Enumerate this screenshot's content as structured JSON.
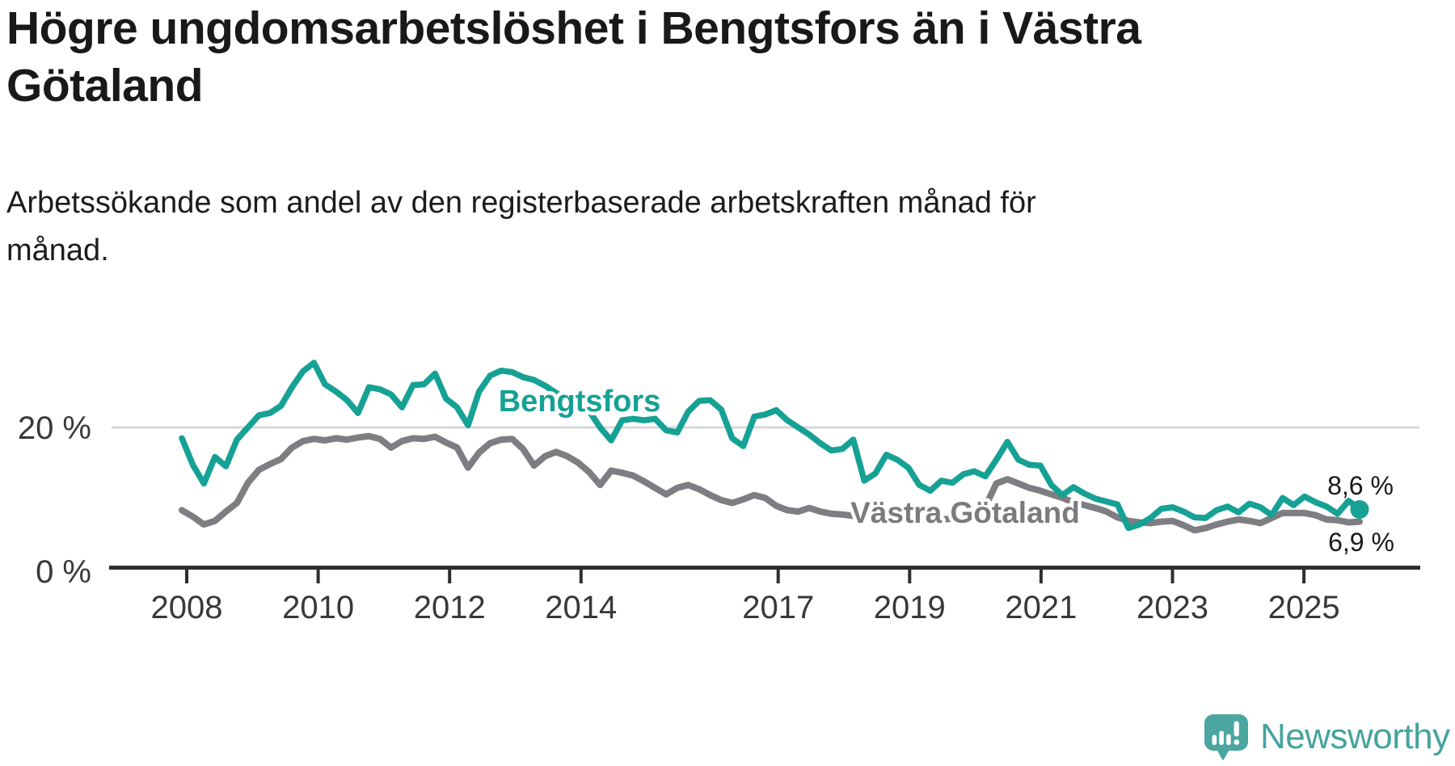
{
  "header": {
    "title_lines": [
      "Högre ungdomsarbetslöshet i Bengtsfors än i Västra",
      "Götaland"
    ],
    "subtitle_lines": [
      "Arbetssökande som andel av den registerbaserade arbetskraften månad för",
      "månad."
    ]
  },
  "branding": {
    "name": "Newsworthy",
    "icon": "newsworthy-speech-bubble-bar-chart-icon",
    "icon_color": "#4ba6a0",
    "text_color": "#45a39d"
  },
  "colors": {
    "accent_teal": "#16a195",
    "series_gray": "#7d7d82",
    "axis_dark": "#2e2e2e",
    "tick_label": "#383838",
    "gridline": "#d8d8d8",
    "value_label": "#191919"
  },
  "chart_data": {
    "type": "line",
    "title": "Högre ungdomsarbetslöshet i Bengtsfors än i Västra Götaland",
    "subtitle": "Arbetssökande som andel av den registerbaserade arbetskraften månad för månad.",
    "unit": "%",
    "x_start_year": 2008.0,
    "x_end_year": 2025.83,
    "x_step_years": 0.1667,
    "frequency_note": "values estimated every 2 months from monthly chart",
    "x_ticks": [
      2008,
      2010,
      2012,
      2014,
      2017,
      2019,
      2021,
      2023,
      2025
    ],
    "y_ticks": [
      {
        "value": 0,
        "label": "0 %"
      },
      {
        "value": 20,
        "label": "20 %"
      }
    ],
    "ylim": [
      0,
      36
    ],
    "grid": "single horizontal gridline at 20 %",
    "legend_position": "inline labels next to lines",
    "series": [
      {
        "name": "Bengtsfors",
        "color": "#16a195",
        "end_label": "8,6 %",
        "last_value": 8.6,
        "values": [
          18.5,
          14.8,
          12.2,
          15.9,
          14.6,
          18.3,
          20.0,
          21.7,
          22.0,
          23.0,
          25.6,
          27.8,
          29.0,
          26.0,
          25.0,
          23.8,
          22.0,
          25.6,
          25.3,
          24.6,
          22.8,
          25.9,
          26.0,
          27.5,
          24.0,
          22.8,
          20.3,
          25.0,
          27.2,
          27.9,
          27.7,
          27.0,
          26.6,
          25.8,
          24.8,
          23.8,
          23.0,
          22.3,
          20.0,
          18.2,
          21.0,
          21.2,
          21.0,
          21.2,
          19.6,
          19.3,
          22.2,
          23.7,
          23.8,
          22.5,
          18.5,
          17.4,
          21.5,
          21.8,
          22.4,
          21.0,
          20.0,
          19.0,
          17.8,
          16.8,
          17.0,
          18.3,
          12.6,
          13.6,
          16.2,
          15.5,
          14.4,
          12.0,
          11.2,
          12.6,
          12.3,
          13.5,
          13.9,
          13.2,
          15.5,
          18.0,
          15.5,
          14.8,
          14.7,
          12.0,
          10.6,
          11.7,
          10.8,
          10.1,
          9.7,
          9.3,
          6.0,
          6.5,
          7.4,
          8.7,
          8.9,
          8.3,
          7.5,
          7.4,
          8.5,
          9.0,
          8.2,
          9.4,
          8.9,
          7.8,
          10.2,
          9.2,
          10.4,
          9.6,
          9.0,
          8.0,
          9.8,
          8.6
        ]
      },
      {
        "name": "Västra Götaland",
        "color": "#7d7d82",
        "end_label": "6,9 %",
        "last_value": 6.9,
        "values": [
          8.5,
          7.6,
          6.5,
          7.0,
          8.3,
          9.5,
          12.3,
          14.1,
          14.9,
          15.6,
          17.2,
          18.1,
          18.4,
          18.2,
          18.5,
          18.3,
          18.6,
          18.8,
          18.4,
          17.2,
          18.1,
          18.5,
          18.4,
          18.7,
          17.9,
          17.2,
          14.4,
          16.5,
          17.8,
          18.3,
          18.4,
          17.0,
          14.7,
          16.0,
          16.6,
          16.0,
          15.1,
          13.8,
          12.0,
          14.0,
          13.7,
          13.3,
          12.5,
          11.6,
          10.7,
          11.6,
          12.0,
          11.4,
          10.6,
          9.9,
          9.5,
          10.0,
          10.6,
          10.2,
          9.1,
          8.5,
          8.3,
          8.8,
          8.3,
          8.0,
          7.9,
          7.7,
          7.6,
          7.5,
          7.4,
          7.4,
          7.3,
          7.2,
          7.1,
          7.2,
          7.3,
          7.6,
          8.2,
          9.0,
          12.2,
          12.8,
          12.2,
          11.6,
          11.2,
          10.7,
          10.2,
          9.6,
          9.2,
          8.8,
          8.3,
          7.5,
          7.0,
          6.8,
          6.7,
          6.9,
          7.0,
          6.4,
          5.7,
          6.0,
          6.5,
          6.9,
          7.2,
          7.0,
          6.7,
          7.4,
          8.1,
          8.1,
          8.1,
          7.8,
          7.2,
          7.1,
          6.8,
          6.9
        ]
      }
    ]
  }
}
